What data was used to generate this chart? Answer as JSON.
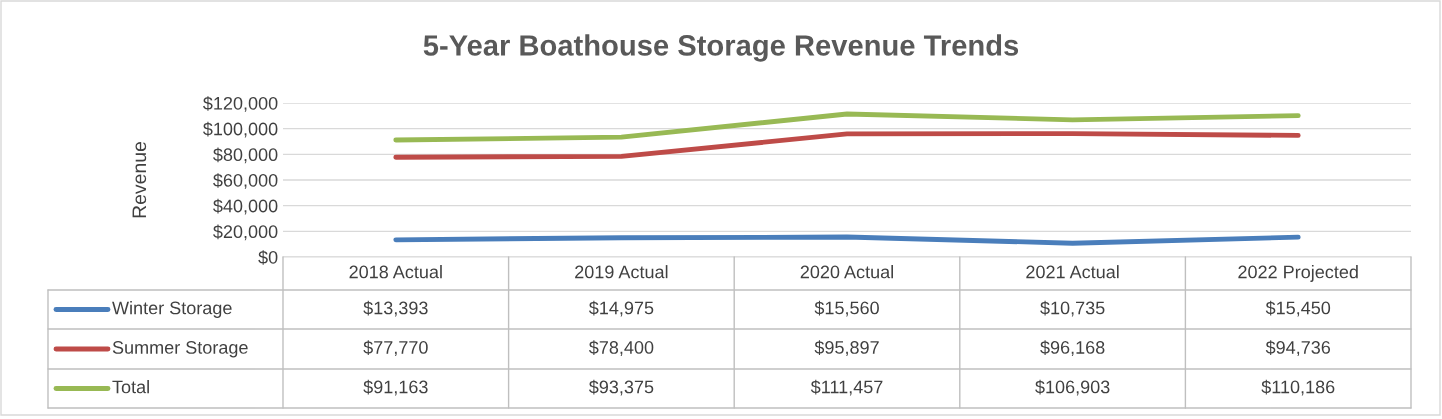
{
  "chart_data": {
    "type": "line",
    "title": "5-Year Boathouse Storage Revenue Trends",
    "ylabel": "Revenue",
    "categories": [
      "2018 Actual",
      "2019 Actual",
      "2020 Actual",
      "2021 Actual",
      "2022 Projected"
    ],
    "series": [
      {
        "name": "Winter Storage",
        "color": "#4a7ebb",
        "values": [
          13393,
          14975,
          15560,
          10735,
          15450
        ],
        "value_labels": [
          "$13,393",
          "$14,975",
          "$15,560",
          "$10,735",
          "$15,450"
        ]
      },
      {
        "name": "Summer Storage",
        "color": "#be4b48",
        "values": [
          77770,
          78400,
          95897,
          96168,
          94736
        ],
        "value_labels": [
          "$77,770",
          "$78,400",
          "$95,897",
          "$96,168",
          "$94,736"
        ]
      },
      {
        "name": "Total",
        "color": "#98b954",
        "values": [
          91163,
          93375,
          111457,
          106903,
          110186
        ],
        "value_labels": [
          "$91,163",
          "$93,375",
          "$111,457",
          "$106,903",
          "$110,186"
        ]
      }
    ],
    "ylim": [
      0,
      120000
    ],
    "yticks": [
      {
        "value": 0,
        "label": "$0"
      },
      {
        "value": 20000,
        "label": "$20,000"
      },
      {
        "value": 40000,
        "label": "$40,000"
      },
      {
        "value": 60000,
        "label": "$60,000"
      },
      {
        "value": 80000,
        "label": "$80,000"
      },
      {
        "value": 100000,
        "label": "$100,000"
      },
      {
        "value": 120000,
        "label": "$120,000"
      }
    ],
    "grid": "y",
    "legend": "bottom"
  }
}
